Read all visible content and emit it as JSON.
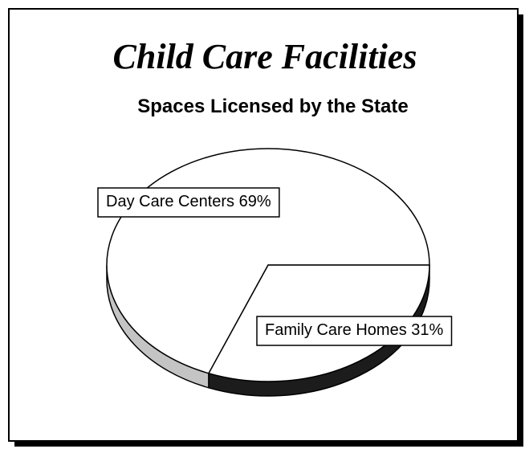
{
  "chart_data": {
    "type": "pie",
    "title": "Child Care Facilities",
    "subtitle": "Spaces Licensed by the State",
    "categories": [
      "Day Care Centers",
      "Family Care Homes"
    ],
    "values": [
      69,
      31
    ],
    "value_labels": [
      "69%",
      "31%"
    ],
    "colors": [
      "#ffffff",
      "#ffffff"
    ],
    "side_colors": [
      "#c4c4c4",
      "#1c1c1c"
    ],
    "three_d": true
  }
}
